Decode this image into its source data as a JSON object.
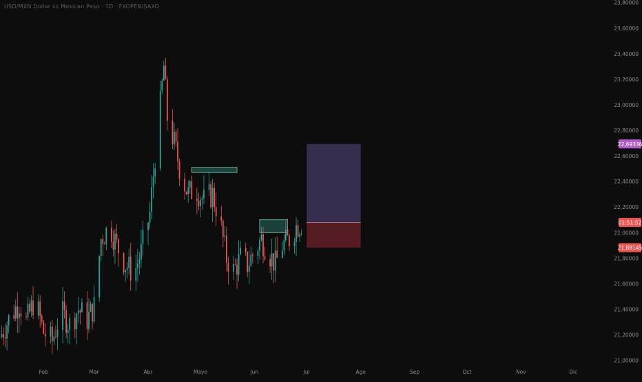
{
  "header": {
    "symbol_text": "USD/MXN Dollar vs Mexican Peso · 1D · FXOPEN/SAXO"
  },
  "colors": {
    "background": "#0d0d0d",
    "up": "#26a69a",
    "down": "#ef5350",
    "axis_text": "#8a8a8a",
    "target_zone": "#3a2f52",
    "stop_zone": "#5a1f24",
    "demand_zone": "#1f4a44",
    "target_badge": "#b05cc8",
    "price_badge": "#ef5350",
    "stop_badge": "#ef5350"
  },
  "chart_data": {
    "type": "candlestick",
    "title": "",
    "xlabel": "",
    "ylabel": "",
    "ylim": [
      20.96,
      23.82
    ],
    "y_ticks": [
      "23,80000",
      "23,60000",
      "23,40000",
      "23,20000",
      "23,00000",
      "22,80000",
      "22,60000",
      "22,40000",
      "22,20000",
      "22,00000",
      "21,80000",
      "21,60000",
      "21,40000",
      "21,20000",
      "21,00000"
    ],
    "y_tick_values": [
      23.8,
      23.6,
      23.4,
      23.2,
      23.0,
      22.8,
      22.6,
      22.4,
      22.2,
      22.0,
      21.8,
      21.6,
      21.4,
      21.2,
      21.0
    ],
    "x_ticks": [
      "Feb",
      "Mar",
      "Abr",
      "Mayo",
      "Jun",
      "Jul",
      "Ago",
      "Sep",
      "Oct",
      "Nov",
      "Dic"
    ],
    "x_tick_dates": [
      "2024-02-01",
      "2024-03-01",
      "2024-04-01",
      "2024-05-01",
      "2024-06-01",
      "2024-07-01",
      "2024-08-01",
      "2024-09-01",
      "2024-10-01",
      "2024-11-01",
      "2024-12-01"
    ],
    "x_range": [
      "2024-01-07",
      "2024-12-25"
    ],
    "close_path": [
      [
        "2024-01-07",
        21.18
      ],
      [
        "2024-01-12",
        21.32
      ],
      [
        "2024-01-18",
        21.45
      ],
      [
        "2024-01-22",
        21.3
      ],
      [
        "2024-01-27",
        21.48
      ],
      [
        "2024-02-01",
        21.22
      ],
      [
        "2024-02-06",
        21.15
      ],
      [
        "2024-02-11",
        21.38
      ],
      [
        "2024-02-16",
        21.28
      ],
      [
        "2024-02-21",
        21.4
      ],
      [
        "2024-02-26",
        21.32
      ],
      [
        "2024-03-01",
        21.42
      ],
      [
        "2024-03-05",
        21.95
      ],
      [
        "2024-03-10",
        22.05
      ],
      [
        "2024-03-14",
        21.9
      ],
      [
        "2024-03-19",
        21.75
      ],
      [
        "2024-03-24",
        21.68
      ],
      [
        "2024-03-28",
        21.85
      ],
      [
        "2024-04-02",
        22.15
      ],
      [
        "2024-04-05",
        22.6
      ],
      [
        "2024-04-08",
        23.0
      ],
      [
        "2024-04-10",
        23.3
      ],
      [
        "2024-04-12",
        22.9
      ],
      [
        "2024-04-16",
        22.7
      ],
      [
        "2024-04-20",
        22.45
      ],
      [
        "2024-04-24",
        22.3
      ],
      [
        "2024-04-28",
        22.35
      ],
      [
        "2024-05-03",
        22.25
      ],
      [
        "2024-05-08",
        22.3
      ],
      [
        "2024-05-12",
        22.1
      ],
      [
        "2024-05-16",
        21.8
      ],
      [
        "2024-05-20",
        21.7
      ],
      [
        "2024-05-24",
        21.8
      ],
      [
        "2024-05-28",
        21.75
      ],
      [
        "2024-06-01",
        21.85
      ],
      [
        "2024-06-05",
        21.95
      ],
      [
        "2024-06-09",
        21.85
      ],
      [
        "2024-06-13",
        21.75
      ],
      [
        "2024-06-17",
        21.9
      ],
      [
        "2024-06-21",
        21.95
      ],
      [
        "2024-06-25",
        22.05
      ],
      [
        "2024-06-29",
        22.08
      ]
    ],
    "zones": [
      {
        "name": "supply-zone",
        "from": "2024-04-26",
        "to": "2024-05-22",
        "high": 22.51,
        "low": 22.47
      },
      {
        "name": "demand-zone",
        "from": "2024-06-04",
        "to": "2024-06-20",
        "high": 22.1,
        "low": 22.0
      },
      {
        "name": "target-zone",
        "from": "2024-07-01",
        "to": "2024-08-01",
        "high": 22.69336,
        "low": 22.08
      },
      {
        "name": "stop-zone",
        "from": "2024-07-01",
        "to": "2024-08-01",
        "high": 22.08,
        "low": 21.88145
      }
    ],
    "price_labels": {
      "target": "22,69336",
      "countdown": "01:51:52",
      "stop": "21,88145"
    },
    "price_label_values": {
      "target": 22.69336,
      "countdown": 22.08,
      "stop": 21.88145
    },
    "grid": false,
    "legend": "none"
  }
}
